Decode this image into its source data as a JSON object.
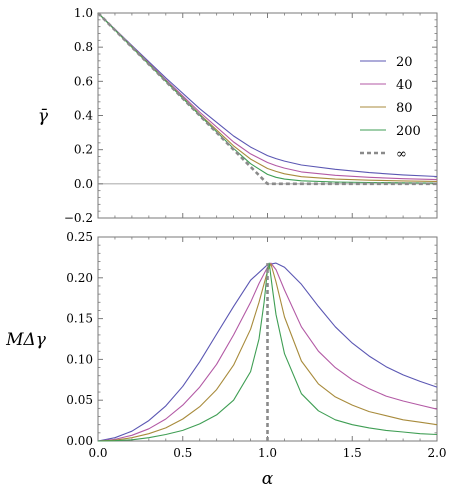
{
  "chart_data": [
    {
      "type": "line",
      "ylabel": "γ̄",
      "xlim": [
        0,
        2
      ],
      "ylim": [
        -0.2,
        1.0
      ],
      "x_ticks": [
        0.0,
        0.5,
        1.0,
        1.5,
        2.0
      ],
      "x_tick_labels": [
        "",
        "",
        "",
        "",
        ""
      ],
      "y_ticks": [
        -0.2,
        0.0,
        0.2,
        0.4,
        0.6,
        0.8,
        1.0
      ],
      "y_tick_labels": [
        "−0.2",
        "0.0",
        "0.2",
        "0.4",
        "0.6",
        "0.8",
        "1.0"
      ],
      "reference_line_y": 0.0,
      "legend": "right",
      "series": [
        {
          "name": "20",
          "color": "#5b57b3",
          "dash": false,
          "x": [
            0,
            0.2,
            0.4,
            0.6,
            0.8,
            0.9,
            1.0,
            1.05,
            1.1,
            1.2,
            1.4,
            1.6,
            1.8,
            2.0
          ],
          "y": [
            1.0,
            0.81,
            0.62,
            0.44,
            0.28,
            0.215,
            0.165,
            0.148,
            0.133,
            0.11,
            0.085,
            0.066,
            0.052,
            0.043
          ]
        },
        {
          "name": "40",
          "color": "#b35aa5",
          "dash": false,
          "x": [
            0,
            0.2,
            0.4,
            0.6,
            0.8,
            0.9,
            1.0,
            1.05,
            1.1,
            1.2,
            1.4,
            1.6,
            1.8,
            2.0
          ],
          "y": [
            1.0,
            0.805,
            0.61,
            0.42,
            0.245,
            0.175,
            0.125,
            0.107,
            0.092,
            0.07,
            0.05,
            0.038,
            0.03,
            0.025
          ]
        },
        {
          "name": "80",
          "color": "#a88b3c",
          "dash": false,
          "x": [
            0,
            0.2,
            0.4,
            0.6,
            0.8,
            0.9,
            1.0,
            1.05,
            1.1,
            1.2,
            1.4,
            1.6,
            1.8,
            2.0
          ],
          "y": [
            1.0,
            0.802,
            0.604,
            0.408,
            0.222,
            0.145,
            0.09,
            0.073,
            0.059,
            0.042,
            0.028,
            0.021,
            0.017,
            0.014
          ]
        },
        {
          "name": "200",
          "color": "#3f9e54",
          "dash": false,
          "x": [
            0,
            0.2,
            0.4,
            0.6,
            0.8,
            0.9,
            1.0,
            1.05,
            1.1,
            1.2,
            1.4,
            1.6,
            1.8,
            2.0
          ],
          "y": [
            1.0,
            0.8,
            0.601,
            0.402,
            0.207,
            0.118,
            0.055,
            0.038,
            0.028,
            0.018,
            0.011,
            0.008,
            0.006,
            0.005
          ]
        },
        {
          "name": "∞",
          "color": "#8a8a8a",
          "dash": true,
          "x": [
            0,
            1.0,
            2.0
          ],
          "y": [
            1.0,
            0.0,
            0.0
          ]
        }
      ]
    },
    {
      "type": "line",
      "xlabel": "α",
      "ylabel": "MΔγ",
      "xlim": [
        0,
        2
      ],
      "ylim": [
        0,
        0.25
      ],
      "x_ticks": [
        0.0,
        0.5,
        1.0,
        1.5,
        2.0
      ],
      "x_tick_labels": [
        "0.0",
        "0.5",
        "1.0",
        "1.5",
        "2.0"
      ],
      "y_ticks": [
        0.0,
        0.05,
        0.1,
        0.15,
        0.2,
        0.25
      ],
      "y_tick_labels": [
        "0.00",
        "0.05",
        "0.10",
        "0.15",
        "0.20",
        "0.25"
      ],
      "series": [
        {
          "name": "20",
          "color": "#5b57b3",
          "dash": false,
          "x": [
            0,
            0.1,
            0.2,
            0.3,
            0.4,
            0.5,
            0.6,
            0.7,
            0.8,
            0.9,
            1.0,
            1.05,
            1.1,
            1.2,
            1.3,
            1.4,
            1.5,
            1.6,
            1.7,
            1.8,
            1.9,
            2.0
          ],
          "y": [
            0,
            0.004,
            0.012,
            0.025,
            0.043,
            0.067,
            0.097,
            0.131,
            0.165,
            0.197,
            0.216,
            0.218,
            0.213,
            0.192,
            0.165,
            0.14,
            0.12,
            0.104,
            0.091,
            0.081,
            0.073,
            0.066
          ]
        },
        {
          "name": "40",
          "color": "#b35aa5",
          "dash": false,
          "x": [
            0,
            0.1,
            0.2,
            0.3,
            0.4,
            0.5,
            0.6,
            0.7,
            0.8,
            0.9,
            0.95,
            1.0,
            1.02,
            1.05,
            1.1,
            1.2,
            1.3,
            1.4,
            1.5,
            1.6,
            1.7,
            1.8,
            1.9,
            2.0
          ],
          "y": [
            0,
            0.002,
            0.007,
            0.015,
            0.027,
            0.044,
            0.066,
            0.094,
            0.13,
            0.17,
            0.193,
            0.213,
            0.218,
            0.21,
            0.185,
            0.14,
            0.11,
            0.09,
            0.075,
            0.064,
            0.055,
            0.049,
            0.044,
            0.039
          ]
        },
        {
          "name": "80",
          "color": "#a88b3c",
          "dash": false,
          "x": [
            0,
            0.1,
            0.2,
            0.3,
            0.4,
            0.5,
            0.6,
            0.7,
            0.8,
            0.9,
            0.95,
            1.0,
            1.02,
            1.05,
            1.1,
            1.2,
            1.3,
            1.4,
            1.5,
            1.6,
            1.7,
            1.8,
            1.9,
            2.0
          ],
          "y": [
            0,
            0.001,
            0.004,
            0.009,
            0.016,
            0.027,
            0.042,
            0.063,
            0.093,
            0.137,
            0.17,
            0.208,
            0.217,
            0.195,
            0.152,
            0.098,
            0.07,
            0.054,
            0.044,
            0.036,
            0.031,
            0.026,
            0.023,
            0.02
          ]
        },
        {
          "name": "200",
          "color": "#3f9e54",
          "dash": false,
          "x": [
            0,
            0.1,
            0.2,
            0.3,
            0.4,
            0.5,
            0.6,
            0.7,
            0.8,
            0.9,
            0.95,
            0.98,
            1.0,
            1.01,
            1.03,
            1.05,
            1.1,
            1.2,
            1.3,
            1.4,
            1.5,
            1.6,
            1.7,
            1.8,
            1.9,
            2.0
          ],
          "y": [
            0,
            0.0004,
            0.0015,
            0.004,
            0.008,
            0.013,
            0.021,
            0.032,
            0.05,
            0.085,
            0.125,
            0.17,
            0.21,
            0.218,
            0.185,
            0.155,
            0.107,
            0.058,
            0.037,
            0.026,
            0.02,
            0.016,
            0.013,
            0.011,
            0.009,
            0.008
          ]
        },
        {
          "name": "∞",
          "color": "#8a8a8a",
          "dash": true,
          "x": [
            1.0,
            1.0
          ],
          "y": [
            0,
            0.218
          ]
        }
      ]
    }
  ]
}
